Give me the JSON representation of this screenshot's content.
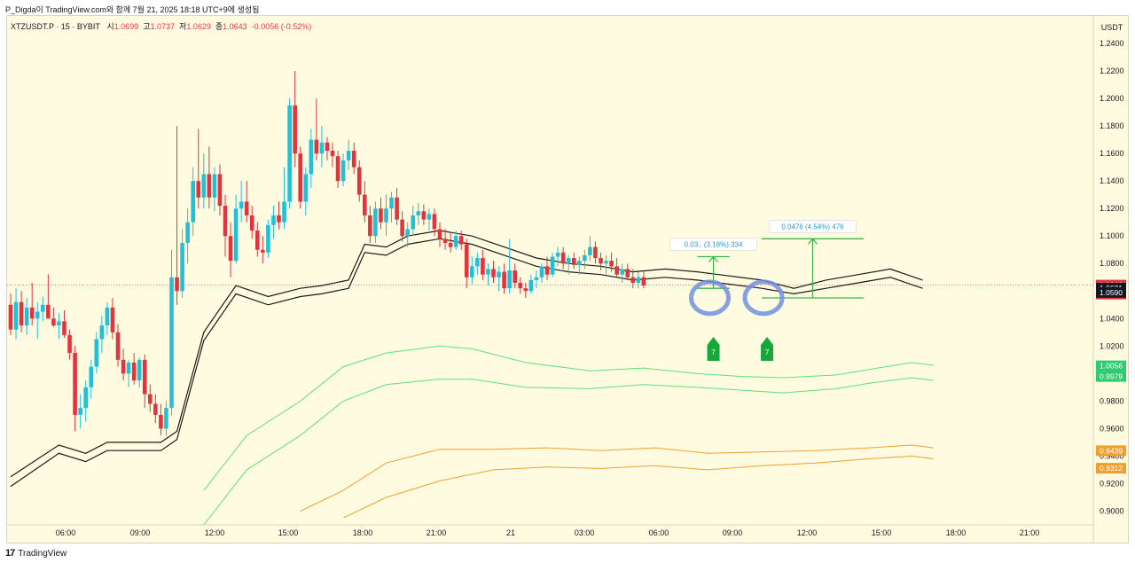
{
  "header": {
    "publish_line": "P_Digda이 TradingView.com와 함께 7월 21, 2025 18:18 UTC+9에 생성됨"
  },
  "symbol": {
    "ticker": "XTZUSDT.P · 15 · BYBIT",
    "open_label": "시",
    "open": "1.0699",
    "high_label": "고",
    "high": "1.0737",
    "low_label": "저",
    "low": "1.0629",
    "close_label": "종",
    "close": "1.0643",
    "change": "-0.0056 (-0.52%)"
  },
  "footer": {
    "brand": "TradingView",
    "logo_glyph": "17"
  },
  "colors": {
    "up": "#22c0d6",
    "down": "#e0343e",
    "background": "#fffbe0",
    "band_green": "#5ee07a",
    "band_orange": "#f0a030",
    "envelope": "#1a1a1a",
    "annotation": "#3bb54a",
    "highlight": "#7090e0"
  },
  "chart_data": {
    "type": "candlestick",
    "interval": "15",
    "price_unit": "USDT",
    "ylim": [
      0.89,
      1.26
    ],
    "y_ticks": [
      "1.2400",
      "1.2200",
      "1.2000",
      "1.1800",
      "1.1600",
      "1.1400",
      "1.1200",
      "1.1000",
      "1.0800",
      "1.0600",
      "1.0400",
      "1.0200",
      "1.0000",
      "0.9800",
      "0.9600",
      "0.9400",
      "0.9200",
      "0.9000"
    ],
    "x_ticks": [
      "06:00",
      "09:00",
      "12:00",
      "15:00",
      "18:00",
      "21:00",
      "21",
      "03:00",
      "06:00",
      "09:00",
      "12:00",
      "15:00",
      "18:00",
      "21:00"
    ],
    "candles_ohlc": [
      [
        1.05,
        1.058,
        1.028,
        1.032
      ],
      [
        1.032,
        1.062,
        1.025,
        1.052
      ],
      [
        1.052,
        1.06,
        1.03,
        1.035
      ],
      [
        1.035,
        1.055,
        1.028,
        1.048
      ],
      [
        1.048,
        1.066,
        1.035,
        1.04
      ],
      [
        1.04,
        1.052,
        1.025,
        1.045
      ],
      [
        1.045,
        1.056,
        1.038,
        1.05
      ],
      [
        1.05,
        1.072,
        1.04,
        1.04
      ],
      [
        1.04,
        1.048,
        1.034,
        1.035
      ],
      [
        1.035,
        1.044,
        1.025,
        1.038
      ],
      [
        1.038,
        1.046,
        1.026,
        1.028
      ],
      [
        1.028,
        1.032,
        1.01,
        1.015
      ],
      [
        1.015,
        1.02,
        0.958,
        0.97
      ],
      [
        0.97,
        0.985,
        0.96,
        0.975
      ],
      [
        0.975,
        0.995,
        0.965,
        0.99
      ],
      [
        0.99,
        1.01,
        0.982,
        1.005
      ],
      [
        1.005,
        1.03,
        1.0,
        1.025
      ],
      [
        1.025,
        1.042,
        1.015,
        1.035
      ],
      [
        1.035,
        1.052,
        1.028,
        1.048
      ],
      [
        1.048,
        1.055,
        1.025,
        1.03
      ],
      [
        1.03,
        1.036,
        1.005,
        1.01
      ],
      [
        1.01,
        1.018,
        0.995,
        1.0
      ],
      [
        1.0,
        1.01,
        0.99,
        1.008
      ],
      [
        1.008,
        1.015,
        0.992,
        0.995
      ],
      [
        0.995,
        1.012,
        0.99,
        1.01
      ],
      [
        1.01,
        1.014,
        0.975,
        0.985
      ],
      [
        0.985,
        0.992,
        0.972,
        0.978
      ],
      [
        0.978,
        0.985,
        0.964,
        0.97
      ],
      [
        0.97,
        0.978,
        0.955,
        0.96
      ],
      [
        0.96,
        0.98,
        0.955,
        0.975
      ],
      [
        0.975,
        1.09,
        0.97,
        1.07
      ],
      [
        1.07,
        1.18,
        1.05,
        1.06
      ],
      [
        1.06,
        1.105,
        1.055,
        1.095
      ],
      [
        1.095,
        1.12,
        1.08,
        1.11
      ],
      [
        1.11,
        1.15,
        1.1,
        1.14
      ],
      [
        1.14,
        1.178,
        1.12,
        1.128
      ],
      [
        1.128,
        1.16,
        1.12,
        1.145
      ],
      [
        1.145,
        1.165,
        1.12,
        1.128
      ],
      [
        1.128,
        1.15,
        1.118,
        1.145
      ],
      [
        1.145,
        1.152,
        1.115,
        1.122
      ],
      [
        1.122,
        1.13,
        1.085,
        1.1
      ],
      [
        1.1,
        1.11,
        1.07,
        1.082
      ],
      [
        1.082,
        1.13,
        1.08,
        1.12
      ],
      [
        1.12,
        1.14,
        1.11,
        1.125
      ],
      [
        1.125,
        1.14,
        1.11,
        1.115
      ],
      [
        1.115,
        1.122,
        1.098,
        1.104
      ],
      [
        1.104,
        1.11,
        1.085,
        1.09
      ],
      [
        1.09,
        1.1,
        1.08,
        1.088
      ],
      [
        1.088,
        1.112,
        1.084,
        1.108
      ],
      [
        1.108,
        1.122,
        1.098,
        1.115
      ],
      [
        1.115,
        1.125,
        1.105,
        1.11
      ],
      [
        1.11,
        1.15,
        1.105,
        1.125
      ],
      [
        1.125,
        1.2,
        1.12,
        1.195
      ],
      [
        1.195,
        1.22,
        1.15,
        1.16
      ],
      [
        1.16,
        1.165,
        1.12,
        1.125
      ],
      [
        1.125,
        1.15,
        1.115,
        1.145
      ],
      [
        1.145,
        1.178,
        1.135,
        1.17
      ],
      [
        1.17,
        1.2,
        1.155,
        1.16
      ],
      [
        1.16,
        1.18,
        1.15,
        1.168
      ],
      [
        1.168,
        1.172,
        1.155,
        1.162
      ],
      [
        1.162,
        1.168,
        1.15,
        1.158
      ],
      [
        1.158,
        1.162,
        1.135,
        1.14
      ],
      [
        1.14,
        1.16,
        1.136,
        1.155
      ],
      [
        1.155,
        1.17,
        1.148,
        1.162
      ],
      [
        1.162,
        1.168,
        1.145,
        1.15
      ],
      [
        1.15,
        1.155,
        1.125,
        1.13
      ],
      [
        1.13,
        1.14,
        1.11,
        1.115
      ],
      [
        1.115,
        1.122,
        1.095,
        1.1
      ],
      [
        1.1,
        1.125,
        1.095,
        1.12
      ],
      [
        1.12,
        1.128,
        1.105,
        1.11
      ],
      [
        1.11,
        1.13,
        1.1,
        1.12
      ],
      [
        1.12,
        1.132,
        1.11,
        1.128
      ],
      [
        1.128,
        1.135,
        1.108,
        1.112
      ],
      [
        1.112,
        1.118,
        1.096,
        1.1
      ],
      [
        1.1,
        1.11,
        1.092,
        1.105
      ],
      [
        1.105,
        1.122,
        1.1,
        1.115
      ],
      [
        1.115,
        1.124,
        1.108,
        1.118
      ],
      [
        1.118,
        1.123,
        1.108,
        1.112
      ],
      [
        1.112,
        1.12,
        1.104,
        1.116
      ],
      [
        1.116,
        1.12,
        1.1,
        1.105
      ],
      [
        1.105,
        1.11,
        1.092,
        1.098
      ],
      [
        1.098,
        1.105,
        1.09,
        1.095
      ],
      [
        1.095,
        1.102,
        1.088,
        1.092
      ],
      [
        1.092,
        1.104,
        1.09,
        1.1
      ],
      [
        1.1,
        1.104,
        1.09,
        1.094
      ],
      [
        1.094,
        1.098,
        1.062,
        1.07
      ],
      [
        1.07,
        1.085,
        1.065,
        1.078
      ],
      [
        1.078,
        1.088,
        1.072,
        1.084
      ],
      [
        1.084,
        1.09,
        1.068,
        1.072
      ],
      [
        1.072,
        1.08,
        1.064,
        1.076
      ],
      [
        1.076,
        1.082,
        1.066,
        1.07
      ],
      [
        1.07,
        1.078,
        1.06,
        1.074
      ],
      [
        1.074,
        1.08,
        1.058,
        1.062
      ],
      [
        1.062,
        1.098,
        1.058,
        1.075
      ],
      [
        1.075,
        1.08,
        1.062,
        1.066
      ],
      [
        1.066,
        1.07,
        1.058,
        1.062
      ],
      [
        1.062,
        1.066,
        1.055,
        1.06
      ],
      [
        1.06,
        1.072,
        1.058,
        1.068
      ],
      [
        1.068,
        1.075,
        1.062,
        1.07
      ],
      [
        1.07,
        1.08,
        1.066,
        1.078
      ],
      [
        1.078,
        1.085,
        1.068,
        1.072
      ],
      [
        1.072,
        1.088,
        1.07,
        1.085
      ],
      [
        1.085,
        1.092,
        1.078,
        1.088
      ],
      [
        1.088,
        1.092,
        1.076,
        1.08
      ],
      [
        1.08,
        1.086,
        1.072,
        1.084
      ],
      [
        1.084,
        1.088,
        1.076,
        1.079
      ],
      [
        1.079,
        1.085,
        1.072,
        1.082
      ],
      [
        1.082,
        1.09,
        1.076,
        1.086
      ],
      [
        1.086,
        1.1,
        1.082,
        1.092
      ],
      [
        1.092,
        1.096,
        1.08,
        1.084
      ],
      [
        1.084,
        1.088,
        1.075,
        1.08
      ],
      [
        1.08,
        1.086,
        1.072,
        1.082
      ],
      [
        1.082,
        1.088,
        1.074,
        1.078
      ],
      [
        1.078,
        1.084,
        1.07,
        1.072
      ],
      [
        1.072,
        1.08,
        1.066,
        1.076
      ],
      [
        1.076,
        1.08,
        1.068,
        1.07
      ],
      [
        1.07,
        1.076,
        1.062,
        1.066
      ],
      [
        1.066,
        1.074,
        1.062,
        1.07
      ],
      [
        1.07,
        1.074,
        1.062,
        1.064
      ]
    ],
    "envelope_upper": [
      [
        0,
        0.925
      ],
      [
        9,
        0.948
      ],
      [
        14,
        0.942
      ],
      [
        18,
        0.95
      ],
      [
        28,
        0.95
      ],
      [
        31,
        0.958
      ],
      [
        36,
        1.03
      ],
      [
        42,
        1.064
      ],
      [
        48,
        1.056
      ],
      [
        54,
        1.062
      ],
      [
        58,
        1.064
      ],
      [
        63,
        1.068
      ],
      [
        66,
        1.094
      ],
      [
        70,
        1.092
      ],
      [
        74,
        1.1
      ],
      [
        80,
        1.104
      ],
      [
        86,
        1.1
      ],
      [
        92,
        1.092
      ],
      [
        98,
        1.084
      ],
      [
        104,
        1.08
      ],
      [
        110,
        1.078
      ],
      [
        116,
        1.074
      ],
      [
        122,
        1.076
      ],
      [
        128,
        1.074
      ],
      [
        132,
        1.072
      ],
      [
        140,
        1.068
      ],
      [
        146,
        1.062
      ],
      [
        152,
        1.068
      ],
      [
        158,
        1.072
      ],
      [
        164,
        1.076
      ],
      [
        170,
        1.068
      ]
    ],
    "envelope_lower": [
      [
        0,
        0.918
      ],
      [
        9,
        0.942
      ],
      [
        14,
        0.936
      ],
      [
        18,
        0.944
      ],
      [
        28,
        0.944
      ],
      [
        31,
        0.952
      ],
      [
        36,
        1.024
      ],
      [
        42,
        1.058
      ],
      [
        48,
        1.05
      ],
      [
        54,
        1.056
      ],
      [
        58,
        1.058
      ],
      [
        63,
        1.062
      ],
      [
        66,
        1.088
      ],
      [
        70,
        1.086
      ],
      [
        74,
        1.094
      ],
      [
        80,
        1.098
      ],
      [
        86,
        1.094
      ],
      [
        92,
        1.086
      ],
      [
        98,
        1.078
      ],
      [
        104,
        1.074
      ],
      [
        110,
        1.072
      ],
      [
        116,
        1.068
      ],
      [
        122,
        1.07
      ],
      [
        128,
        1.068
      ],
      [
        132,
        1.066
      ],
      [
        140,
        1.062
      ],
      [
        146,
        1.058
      ],
      [
        152,
        1.062
      ],
      [
        158,
        1.066
      ],
      [
        164,
        1.07
      ],
      [
        170,
        1.062
      ]
    ],
    "band_green_upper": [
      [
        36,
        0.915
      ],
      [
        44,
        0.955
      ],
      [
        54,
        0.98
      ],
      [
        62,
        1.005
      ],
      [
        70,
        1.015
      ],
      [
        80,
        1.02
      ],
      [
        86,
        1.018
      ],
      [
        96,
        1.008
      ],
      [
        108,
        1.002
      ],
      [
        118,
        1.004
      ],
      [
        128,
        1.0
      ],
      [
        136,
        0.998
      ],
      [
        144,
        0.997
      ],
      [
        154,
        0.999
      ],
      [
        160,
        1.003
      ],
      [
        168,
        1.008
      ],
      [
        172,
        1.006
      ]
    ],
    "band_green_lower": [
      [
        36,
        0.89
      ],
      [
        44,
        0.93
      ],
      [
        54,
        0.955
      ],
      [
        62,
        0.98
      ],
      [
        70,
        0.992
      ],
      [
        80,
        0.996
      ],
      [
        86,
        0.996
      ],
      [
        96,
        0.99
      ],
      [
        108,
        0.989
      ],
      [
        118,
        0.992
      ],
      [
        128,
        0.99
      ],
      [
        136,
        0.988
      ],
      [
        144,
        0.986
      ],
      [
        154,
        0.989
      ],
      [
        160,
        0.993
      ],
      [
        168,
        0.997
      ],
      [
        172,
        0.995
      ]
    ],
    "band_orange_upper": [
      [
        54,
        0.9
      ],
      [
        62,
        0.915
      ],
      [
        70,
        0.935
      ],
      [
        80,
        0.945
      ],
      [
        90,
        0.945
      ],
      [
        100,
        0.946
      ],
      [
        110,
        0.944
      ],
      [
        120,
        0.946
      ],
      [
        130,
        0.942
      ],
      [
        140,
        0.943
      ],
      [
        150,
        0.944
      ],
      [
        160,
        0.946
      ],
      [
        168,
        0.948
      ],
      [
        172,
        0.946
      ]
    ],
    "band_orange_lower": [
      [
        62,
        0.895
      ],
      [
        70,
        0.91
      ],
      [
        80,
        0.922
      ],
      [
        90,
        0.93
      ],
      [
        100,
        0.932
      ],
      [
        110,
        0.931
      ],
      [
        120,
        0.933
      ],
      [
        130,
        0.93
      ],
      [
        140,
        0.933
      ],
      [
        150,
        0.935
      ],
      [
        160,
        0.938
      ],
      [
        168,
        0.94
      ],
      [
        172,
        0.938
      ]
    ],
    "axis_labels": [
      {
        "text": "1.0643",
        "sub": "11:32",
        "price": 1.0643,
        "color": "#e0343e"
      },
      {
        "text": "1.0621",
        "price": 1.0621,
        "color": "#131722"
      },
      {
        "text": "1.0590",
        "price": 1.059,
        "color": "#131722"
      },
      {
        "text": "1.0056",
        "price": 1.0056,
        "color": "#2ecc71"
      },
      {
        "text": "0.9979",
        "price": 0.9979,
        "color": "#2ecc71"
      },
      {
        "text": "0.9439",
        "price": 0.9439,
        "color": "#f0a030"
      },
      {
        "text": "0.9312",
        "price": 0.9312,
        "color": "#f0a030"
      }
    ],
    "measure_1": {
      "label": "0.03.. (3.18%) 334",
      "from_bar": 128,
      "to_bar": 134,
      "low": 1.062,
      "high": 1.085
    },
    "measure_2": {
      "label": "0.0476 (4.54%) 476",
      "from_bar": 140,
      "to_bar": 159,
      "low": 1.055,
      "high": 1.098
    },
    "markers": [
      {
        "text": "7",
        "bar": 131
      },
      {
        "text": "7",
        "bar": 141
      }
    ],
    "current_price": 1.0643
  }
}
